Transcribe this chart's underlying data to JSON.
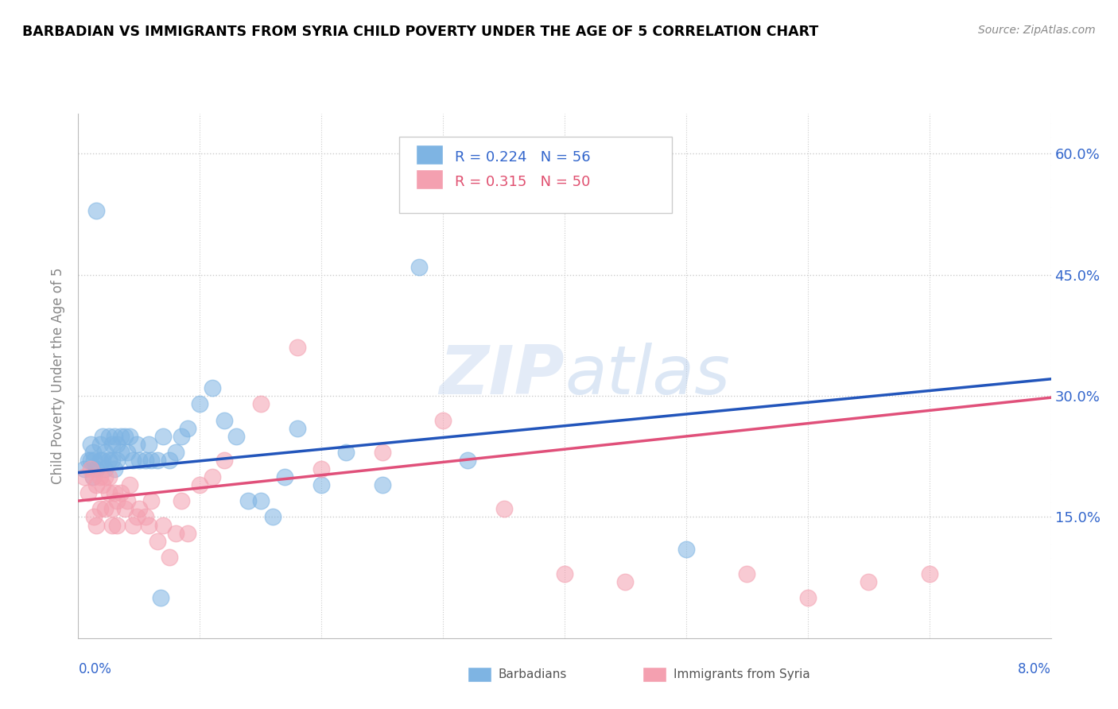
{
  "title": "BARBADIAN VS IMMIGRANTS FROM SYRIA CHILD POVERTY UNDER THE AGE OF 5 CORRELATION CHART",
  "source": "Source: ZipAtlas.com",
  "ylabel": "Child Poverty Under the Age of 5",
  "xlim": [
    0.0,
    8.0
  ],
  "ylim": [
    0.0,
    65.0
  ],
  "ytick_vals": [
    15.0,
    30.0,
    45.0,
    60.0
  ],
  "ytick_labels": [
    "15.0%",
    "30.0%",
    "45.0%",
    "60.0%"
  ],
  "legend_r1": "R = 0.224",
  "legend_n1": "N = 56",
  "legend_r2": "R = 0.315",
  "legend_n2": "N = 50",
  "blue_scatter": "#7EB4E3",
  "pink_scatter": "#F4A0B0",
  "blue_line": "#2255BB",
  "pink_line": "#E0507A",
  "blue_text": "#3366CC",
  "pink_text": "#E05070",
  "watermark_color": "#D0DCF0",
  "barbadians_x": [
    0.05,
    0.08,
    0.1,
    0.1,
    0.12,
    0.12,
    0.13,
    0.15,
    0.15,
    0.18,
    0.18,
    0.2,
    0.2,
    0.22,
    0.22,
    0.25,
    0.25,
    0.28,
    0.28,
    0.3,
    0.3,
    0.32,
    0.32,
    0.35,
    0.35,
    0.38,
    0.4,
    0.42,
    0.45,
    0.48,
    0.5,
    0.55,
    0.58,
    0.6,
    0.65,
    0.68,
    0.7,
    0.75,
    0.8,
    0.85,
    0.9,
    1.0,
    1.1,
    1.2,
    1.3,
    1.4,
    1.5,
    1.6,
    1.7,
    1.8,
    2.0,
    2.2,
    2.5,
    2.8,
    3.2,
    5.0
  ],
  "barbadians_y": [
    21.0,
    22.0,
    22.0,
    24.0,
    20.0,
    23.0,
    22.0,
    53.0,
    21.0,
    22.0,
    24.0,
    22.0,
    25.0,
    21.0,
    23.0,
    22.0,
    25.0,
    22.0,
    24.0,
    21.0,
    25.0,
    22.0,
    24.0,
    23.0,
    25.0,
    25.0,
    23.0,
    25.0,
    22.0,
    24.0,
    22.0,
    22.0,
    24.0,
    22.0,
    22.0,
    5.0,
    25.0,
    22.0,
    23.0,
    25.0,
    26.0,
    29.0,
    31.0,
    27.0,
    25.0,
    17.0,
    17.0,
    15.0,
    20.0,
    26.0,
    19.0,
    23.0,
    19.0,
    46.0,
    22.0,
    11.0
  ],
  "syria_x": [
    0.05,
    0.08,
    0.1,
    0.12,
    0.13,
    0.15,
    0.15,
    0.18,
    0.18,
    0.2,
    0.22,
    0.22,
    0.25,
    0.25,
    0.28,
    0.28,
    0.3,
    0.32,
    0.32,
    0.35,
    0.38,
    0.4,
    0.42,
    0.45,
    0.48,
    0.5,
    0.55,
    0.58,
    0.6,
    0.65,
    0.7,
    0.75,
    0.8,
    0.85,
    0.9,
    1.0,
    1.1,
    1.2,
    1.5,
    1.8,
    2.0,
    2.5,
    3.0,
    3.5,
    4.0,
    4.5,
    5.5,
    6.0,
    6.5,
    7.0
  ],
  "syria_y": [
    20.0,
    18.0,
    21.0,
    20.0,
    15.0,
    19.0,
    14.0,
    20.0,
    16.0,
    19.0,
    20.0,
    16.0,
    18.0,
    20.0,
    14.0,
    16.0,
    18.0,
    14.0,
    17.0,
    18.0,
    16.0,
    17.0,
    19.0,
    14.0,
    15.0,
    16.0,
    15.0,
    14.0,
    17.0,
    12.0,
    14.0,
    10.0,
    13.0,
    17.0,
    13.0,
    19.0,
    20.0,
    22.0,
    29.0,
    36.0,
    21.0,
    23.0,
    27.0,
    16.0,
    8.0,
    7.0,
    8.0,
    5.0,
    7.0,
    8.0
  ],
  "blue_intercept": 20.5,
  "blue_slope": 1.45,
  "pink_intercept": 17.0,
  "pink_slope": 1.6
}
